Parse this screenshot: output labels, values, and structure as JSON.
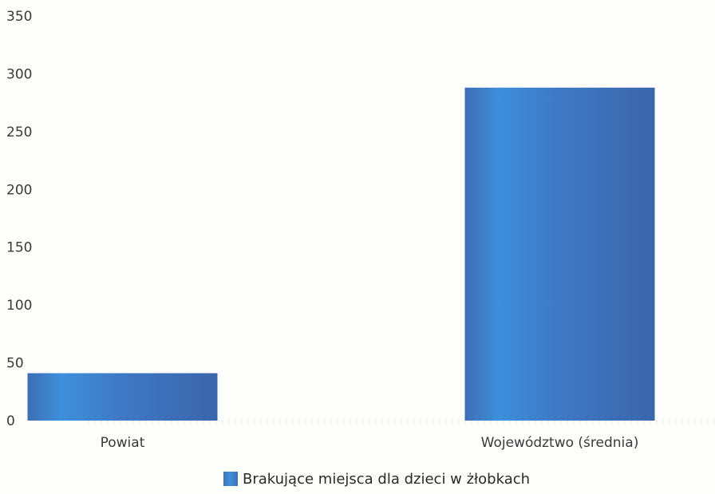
{
  "chart_data": {
    "type": "bar",
    "title": "",
    "xlabel": "",
    "ylabel": "",
    "categories": [
      "Powiat",
      "Województwo (średnia)"
    ],
    "series": [
      {
        "name": "Brakujące miejsca dla dzieci w żłobkach",
        "values": [
          41,
          288
        ]
      }
    ],
    "ylim": [
      0,
      350
    ],
    "yticks": [
      "0",
      "50",
      "100",
      "150",
      "200",
      "250",
      "300",
      "350"
    ],
    "grid": false,
    "legend_position": "bottom-center",
    "colors": {
      "bar_edge": "#3f6fb4",
      "bar_highlight": "#3f8fdc",
      "axis": "#d8d8d8"
    }
  }
}
